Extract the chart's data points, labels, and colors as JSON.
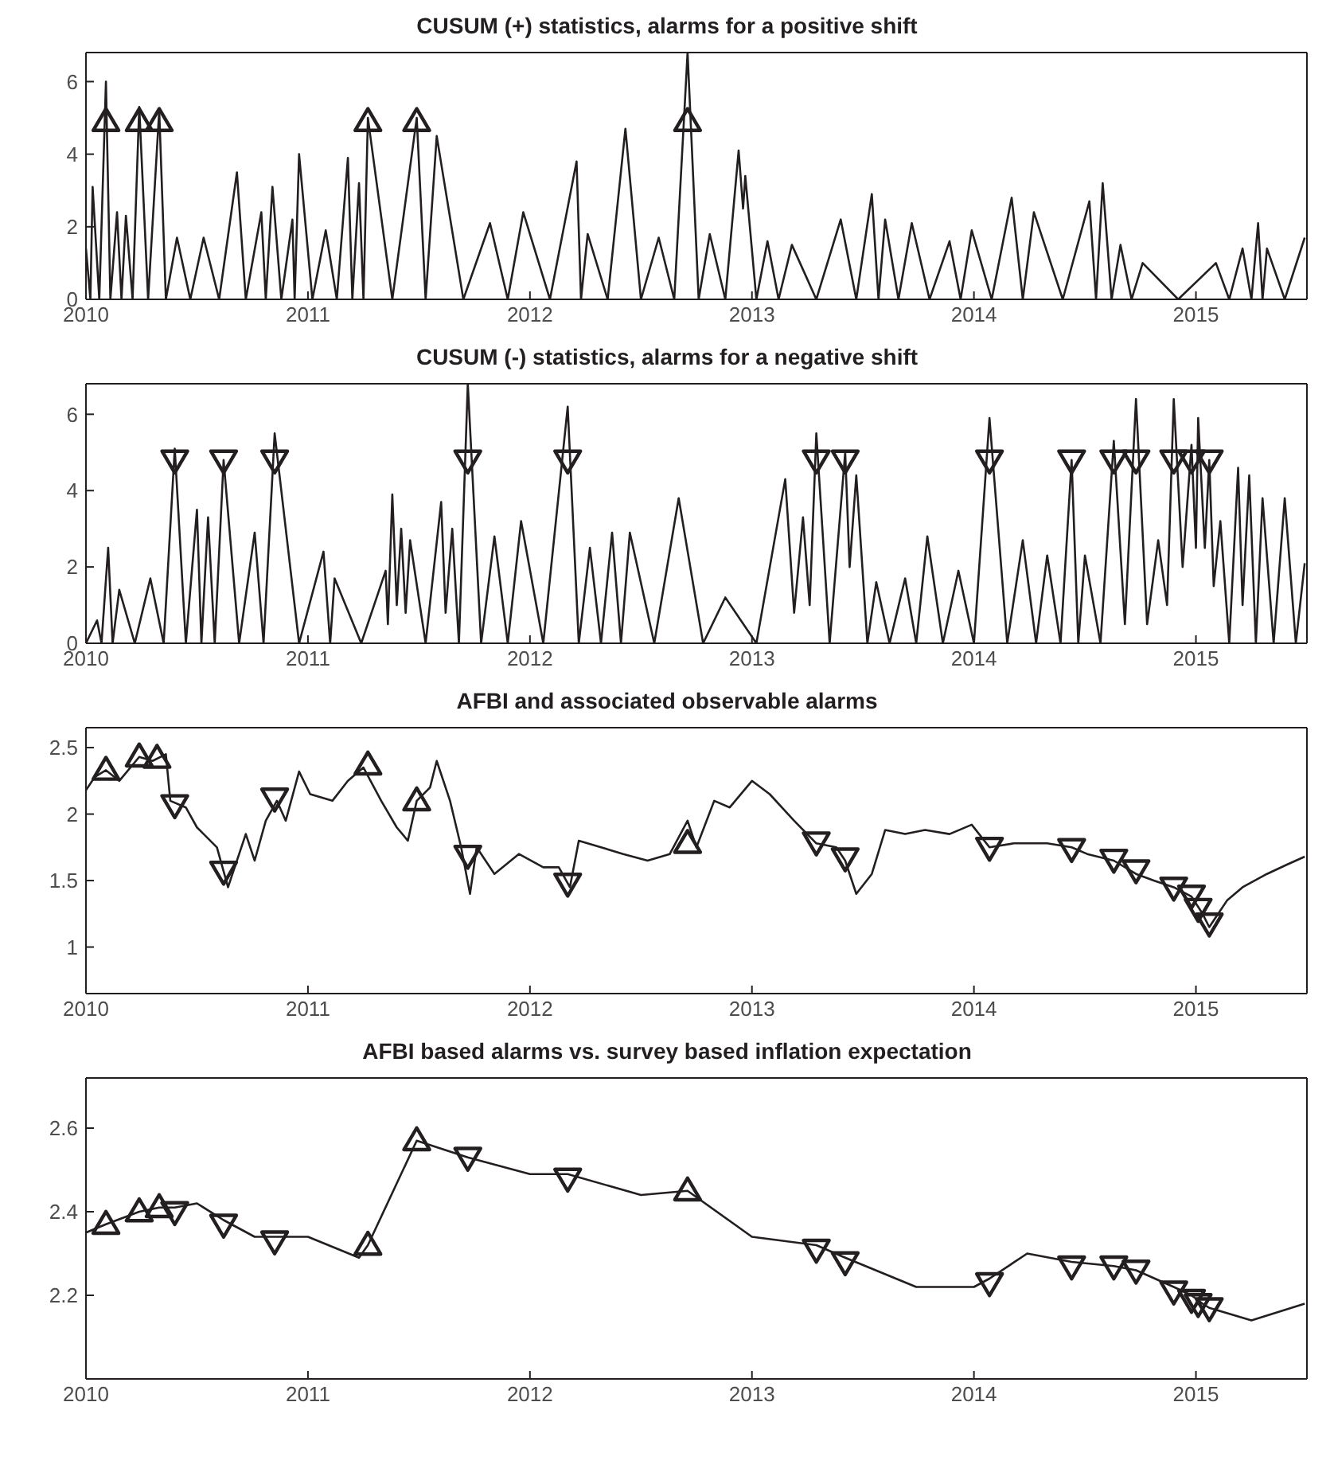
{
  "chart_data": [
    {
      "type": "line",
      "title": "CUSUM (+) statistics, alarms for a positive shift",
      "xlim": [
        2010,
        2015.5
      ],
      "xticks": [
        2010,
        2011,
        2012,
        2013,
        2014,
        2015
      ],
      "ylim": [
        0,
        6.8
      ],
      "yticks": [
        0,
        2,
        4,
        6
      ],
      "series": [
        {
          "type": "line",
          "color": "#231f20",
          "x": [
            2010.0,
            2010.02,
            2010.03,
            2010.06,
            2010.09,
            2010.11,
            2010.14,
            2010.16,
            2010.18,
            2010.21,
            2010.24,
            2010.28,
            2010.33,
            2010.36,
            2010.41,
            2010.47,
            2010.53,
            2010.6,
            2010.68,
            2010.72,
            2010.79,
            2010.81,
            2010.84,
            2010.88,
            2010.93,
            2010.94,
            2010.96,
            2011.02,
            2011.08,
            2011.13,
            2011.18,
            2011.2,
            2011.23,
            2011.25,
            2011.27,
            2011.38,
            2011.49,
            2011.53,
            2011.58,
            2011.7,
            2011.82,
            2011.9,
            2011.97,
            2012.09,
            2012.21,
            2012.23,
            2012.26,
            2012.35,
            2012.43,
            2012.5,
            2012.58,
            2012.65,
            2012.71,
            2012.76,
            2012.81,
            2012.88,
            2012.94,
            2012.96,
            2012.97,
            2013.02,
            2013.07,
            2013.12,
            2013.18,
            2013.29,
            2013.4,
            2013.47,
            2013.54,
            2013.57,
            2013.6,
            2013.66,
            2013.72,
            2013.8,
            2013.89,
            2013.94,
            2013.99,
            2014.08,
            2014.17,
            2014.22,
            2014.27,
            2014.4,
            2014.52,
            2014.55,
            2014.58,
            2014.62,
            2014.66,
            2014.71,
            2014.76,
            2014.92,
            2015.09,
            2015.15,
            2015.21,
            2015.25,
            2015.28,
            2015.3,
            2015.32,
            2015.4,
            2015.49
          ],
          "values": [
            1.4,
            0,
            3.1,
            0,
            6.0,
            0,
            2.4,
            0,
            2.3,
            0,
            5.3,
            0,
            5.2,
            0,
            1.7,
            0,
            1.7,
            0,
            3.5,
            0,
            2.4,
            0,
            3.1,
            0,
            2.2,
            0,
            4.0,
            0,
            1.9,
            0,
            3.9,
            0,
            3.2,
            0,
            5.0,
            0,
            5.0,
            0,
            4.5,
            0,
            2.1,
            0,
            2.4,
            0,
            3.8,
            0,
            1.8,
            0,
            4.7,
            0,
            1.7,
            0,
            6.8,
            0,
            1.8,
            0,
            4.1,
            2.5,
            3.4,
            0,
            1.6,
            0,
            1.5,
            0,
            2.2,
            0,
            2.9,
            0,
            2.2,
            0,
            2.1,
            0,
            1.6,
            0,
            1.9,
            0,
            2.8,
            0,
            2.4,
            0,
            2.7,
            0,
            3.2,
            0,
            1.5,
            0,
            1.0,
            0,
            1.0,
            0,
            1.4,
            0,
            2.1,
            0,
            1.4,
            0,
            1.7
          ]
        },
        {
          "type": "scatter",
          "marker": "triangle",
          "color": "#231f20",
          "x": [
            2010.09,
            2010.24,
            2010.33,
            2011.27,
            2011.49,
            2012.71
          ],
          "values": [
            4.9,
            4.9,
            4.9,
            4.9,
            4.9,
            4.9
          ]
        }
      ]
    },
    {
      "type": "line",
      "title": "CUSUM (-) statistics, alarms for a negative shift",
      "xlim": [
        2010,
        2015.5
      ],
      "xticks": [
        2010,
        2011,
        2012,
        2013,
        2014,
        2015
      ],
      "ylim": [
        0,
        6.8
      ],
      "yticks": [
        0,
        2,
        4,
        6
      ],
      "series": [
        {
          "type": "line",
          "color": "#231f20",
          "x": [
            2010.0,
            2010.05,
            2010.07,
            2010.1,
            2010.12,
            2010.15,
            2010.22,
            2010.29,
            2010.35,
            2010.4,
            2010.45,
            2010.5,
            2010.52,
            2010.55,
            2010.58,
            2010.62,
            2010.69,
            2010.76,
            2010.8,
            2010.85,
            2010.96,
            2011.07,
            2011.1,
            2011.12,
            2011.24,
            2011.35,
            2011.36,
            2011.38,
            2011.4,
            2011.42,
            2011.44,
            2011.46,
            2011.53,
            2011.6,
            2011.62,
            2011.65,
            2011.68,
            2011.72,
            2011.78,
            2011.84,
            2011.9,
            2011.96,
            2012.06,
            2012.17,
            2012.22,
            2012.27,
            2012.32,
            2012.37,
            2012.41,
            2012.45,
            2012.56,
            2012.67,
            2012.78,
            2012.88,
            2013.02,
            2013.15,
            2013.19,
            2013.23,
            2013.26,
            2013.29,
            2013.35,
            2013.42,
            2013.44,
            2013.47,
            2013.52,
            2013.56,
            2013.62,
            2013.69,
            2013.74,
            2013.79,
            2013.86,
            2013.93,
            2014.0,
            2014.07,
            2014.15,
            2014.22,
            2014.28,
            2014.33,
            2014.39,
            2014.44,
            2014.47,
            2014.5,
            2014.57,
            2014.63,
            2014.68,
            2014.73,
            2014.78,
            2014.83,
            2014.87,
            2014.9,
            2014.94,
            2014.98,
            2015.0,
            2015.01,
            2015.04,
            2015.06,
            2015.08,
            2015.11,
            2015.15,
            2015.19,
            2015.21,
            2015.24,
            2015.27,
            2015.3,
            2015.35,
            2015.4,
            2015.45,
            2015.49
          ],
          "values": [
            0,
            0.6,
            0,
            2.5,
            0,
            1.4,
            0,
            1.7,
            0,
            5.1,
            0,
            3.5,
            0,
            3.3,
            0,
            4.8,
            0,
            2.9,
            0,
            5.5,
            0,
            2.4,
            0,
            1.7,
            0,
            1.9,
            0.5,
            3.9,
            1.0,
            3.0,
            0.8,
            2.7,
            0,
            3.7,
            0.8,
            3.0,
            0,
            6.8,
            0,
            2.8,
            0,
            3.2,
            0,
            6.2,
            0,
            2.5,
            0,
            2.9,
            0,
            2.9,
            0,
            3.8,
            0,
            1.2,
            0,
            4.3,
            0.8,
            3.3,
            1.0,
            5.5,
            0,
            5.0,
            2.0,
            4.4,
            0,
            1.6,
            0,
            1.7,
            0,
            2.8,
            0,
            1.9,
            0,
            5.9,
            0,
            2.7,
            0,
            2.3,
            0,
            4.8,
            0,
            2.3,
            0,
            5.3,
            0.5,
            6.4,
            0.5,
            2.7,
            1.0,
            6.4,
            2.0,
            5.2,
            2.5,
            5.9,
            2.5,
            4.8,
            1.5,
            3.2,
            0,
            4.6,
            1.0,
            4.4,
            0,
            3.8,
            0,
            3.8,
            0,
            2.1
          ]
        },
        {
          "type": "scatter",
          "marker": "triangle-down",
          "color": "#231f20",
          "x": [
            2010.4,
            2010.62,
            2010.85,
            2011.72,
            2012.17,
            2013.29,
            2013.42,
            2014.07,
            2014.44,
            2014.63,
            2014.73,
            2014.9,
            2014.98,
            2015.06
          ],
          "values": [
            4.8,
            4.8,
            4.8,
            4.8,
            4.8,
            4.8,
            4.8,
            4.8,
            4.8,
            4.8,
            4.8,
            4.8,
            4.8,
            4.8
          ]
        }
      ]
    },
    {
      "type": "line",
      "title": "AFBI and associated observable alarms",
      "xlim": [
        2010,
        2015.5
      ],
      "xticks": [
        2010,
        2011,
        2012,
        2013,
        2014,
        2015
      ],
      "ylim": [
        0.65,
        2.65
      ],
      "yticks": [
        1,
        1.5,
        2,
        2.5
      ],
      "series": [
        {
          "type": "line",
          "color": "#231f20",
          "x": [
            2010.0,
            2010.04,
            2010.09,
            2010.15,
            2010.24,
            2010.3,
            2010.36,
            2010.38,
            2010.45,
            2010.5,
            2010.59,
            2010.64,
            2010.72,
            2010.76,
            2010.81,
            2010.86,
            2010.9,
            2010.96,
            2011.01,
            2011.11,
            2011.18,
            2011.25,
            2011.33,
            2011.4,
            2011.45,
            2011.49,
            2011.55,
            2011.58,
            2011.64,
            2011.69,
            2011.73,
            2011.76,
            2011.84,
            2011.95,
            2012.06,
            2012.13,
            2012.18,
            2012.22,
            2012.32,
            2012.42,
            2012.53,
            2012.63,
            2012.71,
            2012.75,
            2012.83,
            2012.9,
            2013.0,
            2013.08,
            2013.19,
            2013.29,
            2013.38,
            2013.42,
            2013.47,
            2013.54,
            2013.6,
            2013.69,
            2013.78,
            2013.89,
            2013.99,
            2014.07,
            2014.18,
            2014.33,
            2014.44,
            2014.51,
            2014.63,
            2014.73,
            2014.81,
            2014.9,
            2014.98,
            2015.03,
            2015.06,
            2015.14,
            2015.21,
            2015.32,
            2015.41,
            2015.49
          ],
          "values": [
            2.18,
            2.28,
            2.33,
            2.25,
            2.43,
            2.4,
            2.45,
            2.1,
            2.05,
            1.9,
            1.75,
            1.45,
            1.85,
            1.65,
            1.95,
            2.1,
            1.95,
            2.32,
            2.15,
            2.1,
            2.25,
            2.35,
            2.1,
            1.9,
            1.8,
            2.1,
            2.2,
            2.4,
            2.1,
            1.75,
            1.4,
            1.75,
            1.55,
            1.7,
            1.6,
            1.6,
            1.45,
            1.8,
            1.75,
            1.7,
            1.65,
            1.7,
            1.95,
            1.75,
            2.1,
            2.05,
            2.25,
            2.15,
            1.95,
            1.78,
            1.75,
            1.65,
            1.4,
            1.55,
            1.88,
            1.85,
            1.88,
            1.85,
            1.92,
            1.75,
            1.78,
            1.78,
            1.75,
            1.7,
            1.65,
            1.55,
            1.5,
            1.45,
            1.38,
            1.25,
            1.15,
            1.35,
            1.45,
            1.55,
            1.62,
            1.68
          ]
        },
        {
          "type": "scatter",
          "marker": "triangle",
          "color": "#231f20",
          "x": [
            2010.09,
            2010.24,
            2010.32,
            2011.27,
            2011.49,
            2012.71
          ],
          "values": [
            2.33,
            2.43,
            2.42,
            2.37,
            2.1,
            1.78
          ]
        },
        {
          "type": "scatter",
          "marker": "triangle-down",
          "color": "#231f20",
          "x": [
            2010.4,
            2010.62,
            2010.85,
            2011.72,
            2012.17,
            2013.29,
            2013.42,
            2014.07,
            2014.44,
            2014.63,
            2014.73,
            2014.9,
            2014.98,
            2015.01,
            2015.06
          ],
          "values": [
            2.07,
            1.57,
            2.12,
            1.69,
            1.48,
            1.79,
            1.67,
            1.75,
            1.74,
            1.66,
            1.58,
            1.45,
            1.39,
            1.29,
            1.18
          ]
        }
      ]
    },
    {
      "type": "line",
      "title": "AFBI based alarms vs. survey based inflation expectation",
      "xlim": [
        2010,
        2015.5
      ],
      "xticks": [
        2010,
        2011,
        2012,
        2013,
        2014,
        2015
      ],
      "ylim": [
        2.0,
        2.72
      ],
      "yticks": [
        2.2,
        2.4,
        2.6
      ],
      "series": [
        {
          "type": "line",
          "color": "#231f20",
          "x": [
            2010.0,
            2010.09,
            2010.24,
            2010.33,
            2010.4,
            2010.5,
            2010.62,
            2010.76,
            2010.85,
            2011.0,
            2011.23,
            2011.27,
            2011.49,
            2011.72,
            2012.0,
            2012.17,
            2012.5,
            2012.71,
            2013.0,
            2013.29,
            2013.42,
            2013.74,
            2014.0,
            2014.07,
            2014.24,
            2014.44,
            2014.63,
            2014.73,
            2014.9,
            2014.98,
            2015.03,
            2015.06,
            2015.25,
            2015.49
          ],
          "values": [
            2.35,
            2.37,
            2.4,
            2.41,
            2.41,
            2.42,
            2.38,
            2.34,
            2.34,
            2.34,
            2.29,
            2.32,
            2.57,
            2.53,
            2.49,
            2.49,
            2.44,
            2.45,
            2.34,
            2.32,
            2.29,
            2.22,
            2.22,
            2.24,
            2.3,
            2.28,
            2.27,
            2.26,
            2.22,
            2.2,
            2.18,
            2.17,
            2.14,
            2.18
          ]
        },
        {
          "type": "scatter",
          "marker": "triangle",
          "color": "#231f20",
          "x": [
            2010.09,
            2010.24,
            2010.33,
            2011.27,
            2011.49,
            2012.71
          ],
          "values": [
            2.37,
            2.4,
            2.41,
            2.32,
            2.57,
            2.45
          ]
        },
        {
          "type": "scatter",
          "marker": "triangle-down",
          "color": "#231f20",
          "x": [
            2010.4,
            2010.62,
            2010.85,
            2011.72,
            2012.17,
            2013.29,
            2013.42,
            2014.07,
            2014.44,
            2014.63,
            2014.73,
            2014.9,
            2014.98,
            2015.01,
            2015.06
          ],
          "values": [
            2.4,
            2.37,
            2.33,
            2.53,
            2.48,
            2.31,
            2.28,
            2.23,
            2.27,
            2.27,
            2.26,
            2.21,
            2.19,
            2.18,
            2.17
          ]
        }
      ]
    }
  ]
}
